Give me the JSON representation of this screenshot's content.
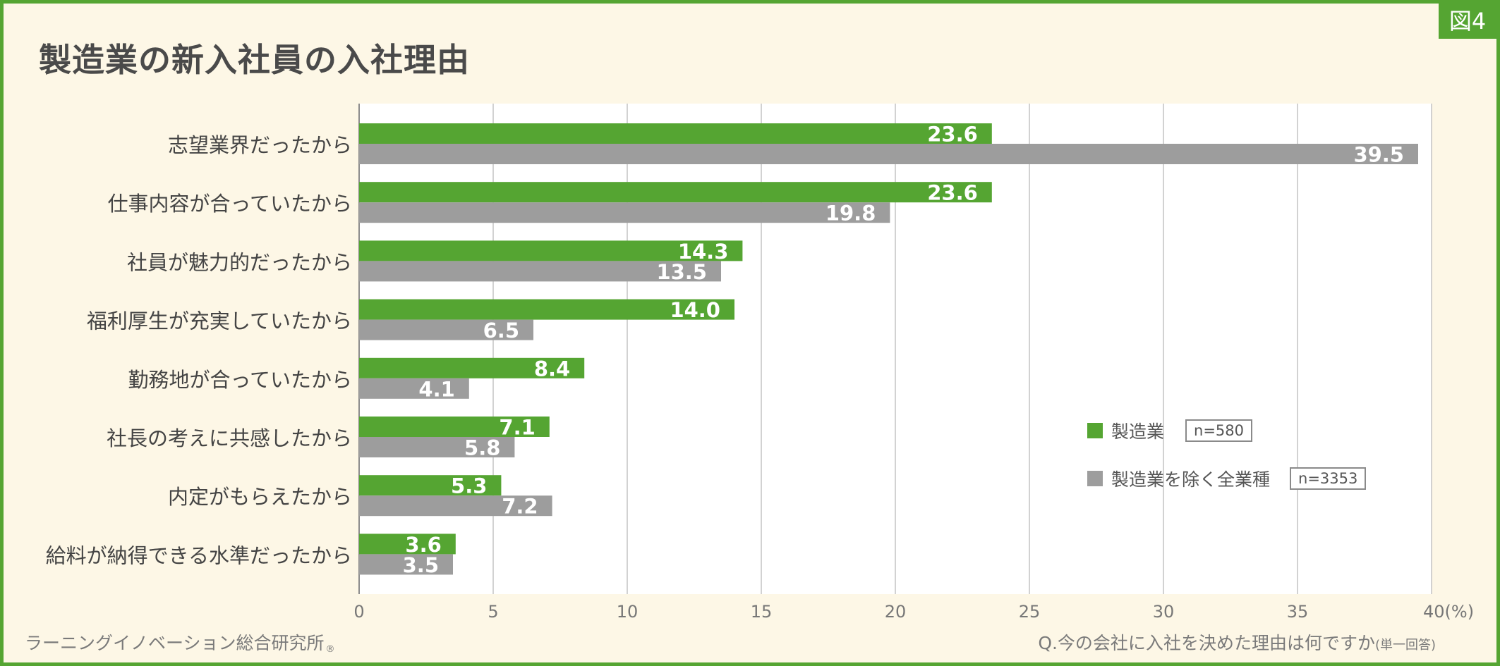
{
  "figure_label": "図4",
  "title": "製造業の新入社員の入社理由",
  "source": "ラーニングイノベーション総合研究所",
  "registered_mark": "®",
  "question": "Q.今の会社に入社を決めた理由は何ですか",
  "question_note": "(単一回答)",
  "legend": [
    {
      "label": "製造業",
      "n": "n=580",
      "color": "#55a532"
    },
    {
      "label": "製造業を除く全業種",
      "n": "n=3353",
      "color": "#9d9d9d"
    }
  ],
  "chart_data": {
    "type": "bar",
    "orientation": "horizontal",
    "categories": [
      "志望業界だったから",
      "仕事内容が合っていたから",
      "社員が魅力的だったから",
      "福利厚生が充実していたから",
      "勤務地が合っていたから",
      "社長の考えに共感したから",
      "内定がもらえたから",
      "給料が納得できる水準だったから"
    ],
    "series": [
      {
        "name": "製造業",
        "values": [
          23.6,
          23.6,
          14.3,
          14.0,
          8.4,
          7.1,
          5.3,
          3.6
        ],
        "labels": [
          "23.6",
          "23.6",
          "14.3",
          "14.0",
          "8.4",
          "7.1",
          "5.3",
          "3.6"
        ],
        "color": "#55a532"
      },
      {
        "name": "製造業を除く全業種",
        "values": [
          39.5,
          19.8,
          13.5,
          6.5,
          4.1,
          5.8,
          7.2,
          3.5
        ],
        "labels": [
          "39.5",
          "19.8",
          "13.5",
          "6.5",
          "4.1",
          "5.8",
          "7.2",
          "3.5"
        ],
        "color": "#9d9d9d"
      }
    ],
    "xlim": [
      0,
      40
    ],
    "xticks": [
      0,
      5,
      10,
      15,
      20,
      25,
      30,
      35,
      40
    ],
    "xtick_labels": [
      "0",
      "5",
      "10",
      "15",
      "20",
      "25",
      "30",
      "35",
      "40(%)"
    ],
    "grid": true,
    "legend_position": "bottom-right"
  }
}
